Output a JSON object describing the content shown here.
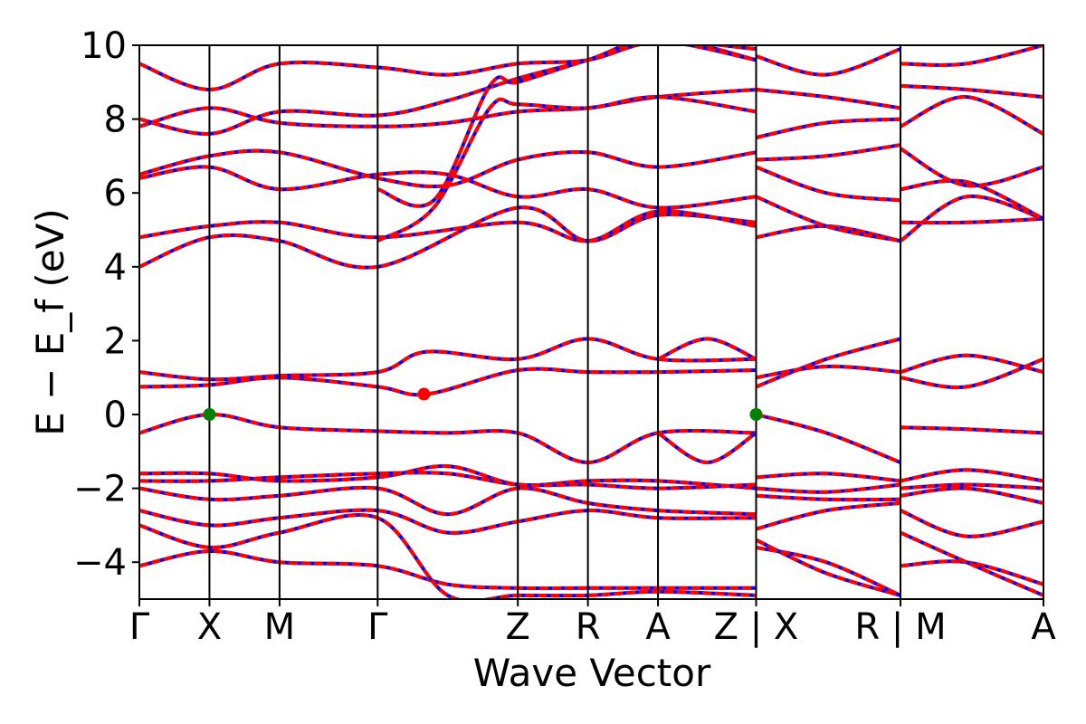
{
  "chart_data": {
    "type": "line",
    "xlabel": "Wave Vector",
    "ylabel": "E − E_f (eV)",
    "ylim": [
      -5,
      10
    ],
    "y_ticks": [
      -4,
      -2,
      0,
      2,
      4,
      6,
      8,
      10
    ],
    "y_tick_labels": [
      "−4",
      "−2",
      "0",
      "2",
      "4",
      "6",
      "8",
      "10"
    ],
    "x_ticks": [
      {
        "label": "Γ",
        "x": 0.0
      },
      {
        "label": "X",
        "x": 0.5
      },
      {
        "label": "M",
        "x": 1.0
      },
      {
        "label": "Γ",
        "x": 1.7
      },
      {
        "label": "Z",
        "x": 2.7
      },
      {
        "label": "R",
        "x": 3.2
      },
      {
        "label": "A",
        "x": 3.7
      },
      {
        "label": "Z | X",
        "x": 4.4
      },
      {
        "label": "R | M",
        "x": 5.43
      },
      {
        "label": "A",
        "x": 6.45
      }
    ],
    "x_range": [
      0,
      6.45
    ],
    "grid": false,
    "series": [
      {
        "style": "solid",
        "color": "#0000ff"
      },
      {
        "style": "dashed",
        "color": "#ff0000"
      }
    ],
    "bands": [
      {
        "x": [
          0,
          0.5,
          1.0,
          1.7,
          2.2,
          2.7,
          3.2,
          3.7,
          4.4
        ],
        "y": [
          -4.1,
          -3.7,
          -4.0,
          -4.1,
          -4.6,
          -4.7,
          -4.7,
          -4.7,
          -4.7
        ]
      },
      {
        "x": [
          4.4,
          4.9,
          5.43
        ],
        "y": [
          -3.4,
          -4.3,
          -4.9
        ]
      },
      {
        "x": [
          5.43,
          5.9,
          6.45
        ],
        "y": [
          -4.1,
          -4.0,
          -4.6
        ]
      },
      {
        "x": [
          0,
          0.5,
          1.0,
          1.7,
          2.2,
          2.7,
          3.2,
          3.7,
          4.4
        ],
        "y": [
          -3.0,
          -3.6,
          -3.2,
          -2.8,
          -4.9,
          -4.9,
          -4.9,
          -4.8,
          -4.9
        ]
      },
      {
        "x": [
          4.4,
          4.9,
          5.43
        ],
        "y": [
          -3.6,
          -4.0,
          -4.9
        ]
      },
      {
        "x": [
          5.43,
          5.9,
          6.45
        ],
        "y": [
          -3.2,
          -4.0,
          -4.9
        ]
      },
      {
        "x": [
          0,
          0.5,
          1.0,
          1.7,
          2.2,
          2.7,
          3.2,
          3.7,
          4.4
        ],
        "y": [
          -2.6,
          -3.0,
          -2.8,
          -2.6,
          -3.2,
          -2.9,
          -2.6,
          -2.8,
          -2.8
        ]
      },
      {
        "x": [
          4.4,
          4.9,
          5.43
        ],
        "y": [
          -3.1,
          -2.6,
          -2.4
        ]
      },
      {
        "x": [
          5.43,
          5.9,
          6.45
        ],
        "y": [
          -2.6,
          -3.3,
          -2.9
        ]
      },
      {
        "x": [
          0,
          0.5,
          1.0,
          1.7,
          2.2,
          2.7,
          3.2,
          3.7,
          4.4
        ],
        "y": [
          -2.0,
          -2.3,
          -2.2,
          -2.0,
          -2.7,
          -2.0,
          -2.4,
          -2.6,
          -2.7
        ]
      },
      {
        "x": [
          4.4,
          4.9,
          5.43
        ],
        "y": [
          -2.2,
          -2.3,
          -2.3
        ]
      },
      {
        "x": [
          5.43,
          5.9,
          6.45
        ],
        "y": [
          -2.2,
          -2.0,
          -2.4
        ]
      },
      {
        "x": [
          0,
          0.5,
          1.0,
          1.7,
          2.2,
          2.7,
          3.2,
          3.7,
          4.4
        ],
        "y": [
          -1.6,
          -1.6,
          -1.8,
          -1.7,
          -1.4,
          -1.9,
          -1.8,
          -1.8,
          -2.0
        ]
      },
      {
        "x": [
          4.4,
          4.9,
          5.43
        ],
        "y": [
          -1.7,
          -1.6,
          -1.8
        ]
      },
      {
        "x": [
          5.43,
          5.9,
          6.45
        ],
        "y": [
          -1.8,
          -1.5,
          -1.8
        ]
      },
      {
        "x": [
          0,
          0.5,
          1.0,
          1.7,
          2.2,
          2.7,
          3.2,
          3.7,
          4.4
        ],
        "y": [
          -1.8,
          -1.8,
          -1.7,
          -1.6,
          -1.6,
          -1.9,
          -1.9,
          -2.0,
          -1.9
        ]
      },
      {
        "x": [
          4.4,
          4.9,
          5.43
        ],
        "y": [
          -2.0,
          -2.1,
          -1.9
        ]
      },
      {
        "x": [
          5.43,
          5.9,
          6.45
        ],
        "y": [
          -2.0,
          -1.9,
          -2.0
        ]
      },
      {
        "x": [
          0,
          0.5,
          1.0,
          1.7,
          2.2,
          2.7,
          3.2,
          3.7,
          4.4
        ],
        "y": [
          -0.5,
          0.0,
          -0.35,
          -0.45,
          -0.5,
          -0.5,
          -1.3,
          -0.5,
          -0.5
        ]
      },
      {
        "x": [
          3.7,
          4.05,
          4.4
        ],
        "y": [
          -0.5,
          -1.3,
          -0.5
        ]
      },
      {
        "x": [
          4.4,
          4.9,
          5.43
        ],
        "y": [
          0.0,
          -0.5,
          -1.3
        ]
      },
      {
        "x": [
          5.43,
          5.9,
          6.45
        ],
        "y": [
          -0.35,
          -0.4,
          -0.5
        ]
      },
      {
        "x": [
          0,
          0.5,
          1.0,
          1.7,
          2.05,
          2.7,
          3.2,
          3.7,
          4.4
        ],
        "y": [
          0.75,
          0.8,
          1.0,
          0.75,
          0.55,
          1.2,
          1.15,
          1.15,
          1.2
        ]
      },
      {
        "x": [
          4.4,
          4.9,
          5.43
        ],
        "y": [
          0.75,
          1.5,
          2.05
        ]
      },
      {
        "x": [
          5.43,
          5.9,
          6.45
        ],
        "y": [
          1.0,
          0.75,
          1.5
        ]
      },
      {
        "x": [
          0,
          0.5,
          1.0,
          1.7,
          2.05,
          2.7,
          3.2,
          3.7,
          4.4
        ],
        "y": [
          1.15,
          0.95,
          1.05,
          1.15,
          1.7,
          1.5,
          2.05,
          1.5,
          1.5
        ]
      },
      {
        "x": [
          3.7,
          4.05,
          4.4
        ],
        "y": [
          1.5,
          2.05,
          1.5
        ]
      },
      {
        "x": [
          4.4,
          4.9,
          5.43
        ],
        "y": [
          1.0,
          1.3,
          1.15
        ]
      },
      {
        "x": [
          5.43,
          5.9,
          6.45
        ],
        "y": [
          1.15,
          1.6,
          1.15
        ]
      },
      {
        "x": [
          0,
          0.5,
          1.0,
          1.7,
          2.7,
          3.2,
          3.7,
          4.4
        ],
        "y": [
          4.0,
          4.8,
          4.7,
          4.0,
          5.6,
          4.7,
          5.4,
          5.2
        ]
      },
      {
        "x": [
          4.4,
          4.9,
          5.43
        ],
        "y": [
          4.8,
          5.1,
          4.7
        ]
      },
      {
        "x": [
          5.43,
          5.9,
          6.45
        ],
        "y": [
          5.2,
          5.2,
          5.3
        ]
      },
      {
        "x": [
          0,
          0.5,
          1.0,
          1.7,
          2.7,
          3.2,
          3.7,
          4.4
        ],
        "y": [
          4.8,
          5.1,
          5.2,
          4.8,
          5.2,
          4.7,
          5.5,
          5.1
        ]
      },
      {
        "x": [
          4.4,
          4.9,
          5.43
        ],
        "y": [
          5.9,
          5.1,
          4.7
        ]
      },
      {
        "x": [
          5.43,
          5.9,
          6.45
        ],
        "y": [
          4.7,
          5.9,
          5.3
        ]
      },
      {
        "x": [
          0,
          0.5,
          1.0,
          1.7,
          2.2,
          2.7,
          3.2,
          3.7,
          4.4
        ],
        "y": [
          6.4,
          6.7,
          6.1,
          6.5,
          6.5,
          5.9,
          6.1,
          5.6,
          5.9
        ]
      },
      {
        "x": [
          4.4,
          4.9,
          5.43
        ],
        "y": [
          6.7,
          6.0,
          5.8
        ]
      },
      {
        "x": [
          5.43,
          5.9,
          6.45
        ],
        "y": [
          6.1,
          6.3,
          5.3
        ]
      },
      {
        "x": [
          0,
          0.5,
          1.0,
          1.7,
          2.2,
          2.7,
          3.2,
          3.7,
          4.4
        ],
        "y": [
          6.5,
          7.0,
          7.1,
          6.4,
          6.2,
          6.9,
          7.1,
          6.7,
          7.1
        ]
      },
      {
        "x": [
          4.4,
          4.9,
          5.43
        ],
        "y": [
          6.9,
          7.0,
          7.3
        ]
      },
      {
        "x": [
          5.43,
          5.9,
          6.45
        ],
        "y": [
          7.2,
          6.2,
          6.7
        ]
      },
      {
        "x": [
          0,
          0.5,
          1.0,
          1.7,
          2.2,
          2.7,
          3.2,
          3.7,
          4.4
        ],
        "y": [
          7.8,
          8.3,
          7.9,
          7.8,
          7.9,
          8.2,
          8.3,
          8.6,
          8.8
        ]
      },
      {
        "x": [
          4.4,
          4.9,
          5.43
        ],
        "y": [
          7.5,
          7.9,
          8.0
        ]
      },
      {
        "x": [
          5.43,
          5.9,
          6.45
        ],
        "y": [
          7.8,
          8.6,
          7.6
        ]
      },
      {
        "x": [
          0,
          0.5,
          1.0,
          1.7,
          2.2,
          2.7,
          3.2,
          3.7,
          4.4
        ],
        "y": [
          8.0,
          7.6,
          8.2,
          8.1,
          8.5,
          9.1,
          9.6,
          10.2,
          9.6
        ]
      },
      {
        "x": [
          4.4,
          4.9,
          5.43
        ],
        "y": [
          8.8,
          8.6,
          8.3
        ]
      },
      {
        "x": [
          5.43,
          5.9,
          6.45
        ],
        "y": [
          8.9,
          8.8,
          8.6
        ]
      },
      {
        "x": [
          0,
          0.5,
          1.0,
          1.7,
          2.2,
          2.7,
          3.2,
          3.7,
          4.4
        ],
        "y": [
          9.5,
          8.8,
          9.5,
          9.4,
          9.2,
          9.5,
          9.6,
          10.1,
          9.9
        ]
      },
      {
        "x": [
          4.4,
          4.9,
          5.43
        ],
        "y": [
          9.7,
          9.2,
          9.9
        ]
      },
      {
        "x": [
          5.43,
          5.9,
          6.45
        ],
        "y": [
          9.5,
          9.5,
          10.0
        ]
      },
      {
        "x": [
          1.7,
          2.1,
          2.5,
          2.7,
          3.2,
          3.7,
          4.4
        ],
        "y": [
          4.7,
          5.6,
          8.3,
          8.4,
          8.3,
          8.6,
          8.2
        ]
      },
      {
        "x": [
          1.7,
          2.1,
          2.5,
          2.7,
          3.2,
          3.7,
          4.4
        ],
        "y": [
          6.1,
          5.8,
          8.9,
          9.0,
          9.6,
          10.1,
          9.6
        ]
      }
    ],
    "markers": [
      {
        "x": 0.5,
        "y": 0.0,
        "color": "#008000"
      },
      {
        "x": 2.03,
        "y": 0.55,
        "color": "#ff0000"
      },
      {
        "x": 4.4,
        "y": 0.0,
        "color": "#008000"
      }
    ]
  }
}
